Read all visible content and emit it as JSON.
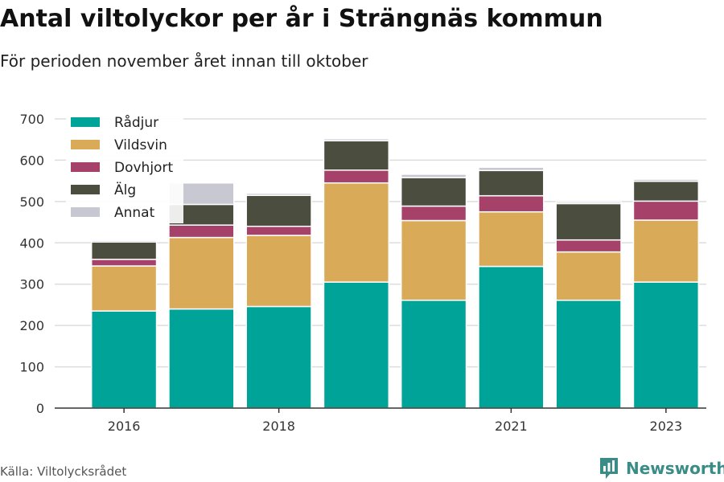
{
  "chart_data": {
    "type": "bar",
    "stacked": true,
    "title": "Antal viltolyckor per år i Strängnäs kommun",
    "subtitle": "För perioden november året innan till oktober",
    "categories": [
      "2016",
      "2017",
      "2018",
      "2019",
      "2020",
      "2021",
      "2022",
      "2023"
    ],
    "x_tick_labels": [
      "2016",
      "",
      "2018",
      "",
      "",
      "2021",
      "",
      "2023"
    ],
    "series": [
      {
        "name": "Rådjur",
        "color": "#00a398",
        "values": [
          235,
          240,
          246,
          305,
          261,
          343,
          261,
          305
        ]
      },
      {
        "name": "Vildsvin",
        "color": "#d9ab59",
        "values": [
          109,
          173,
          172,
          240,
          193,
          132,
          117,
          150
        ]
      },
      {
        "name": "Dovhjort",
        "color": "#a6426a",
        "values": [
          16,
          30,
          22,
          31,
          35,
          39,
          29,
          46
        ]
      },
      {
        "name": "Älg",
        "color": "#4b4d3f",
        "values": [
          42,
          50,
          75,
          71,
          69,
          61,
          88,
          48
        ]
      },
      {
        "name": "Annat",
        "color": "#c8c8d2",
        "values": [
          4,
          52,
          5,
          5,
          8,
          8,
          4,
          5
        ]
      }
    ],
    "ylim": [
      0,
      700
    ],
    "yticks": [
      0,
      100,
      200,
      300,
      400,
      500,
      600,
      700
    ],
    "grid": true,
    "legend": "top-left"
  },
  "footer": {
    "source": "Källa: Viltolycksrådet",
    "brand": "Newsworthy",
    "brand_color": "#3a8c87"
  }
}
